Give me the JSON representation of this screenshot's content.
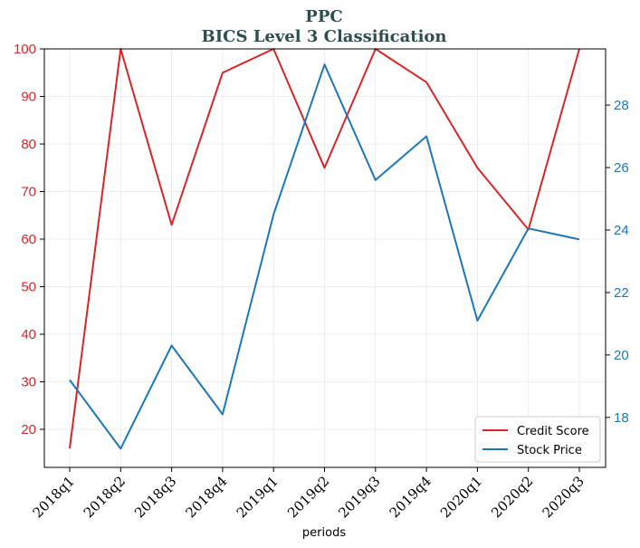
{
  "chart_data": {
    "type": "line",
    "title": "PPC",
    "subtitle": "BICS Level 3 Classification",
    "xlabel": "periods",
    "categories": [
      "2018q1",
      "2018q2",
      "2018q3",
      "2018q4",
      "2019q1",
      "2019q2",
      "2019q3",
      "2019q4",
      "2020q1",
      "2020q2",
      "2020q3"
    ],
    "series": [
      {
        "name": "Credit Score",
        "axis": "left",
        "color": "#d62728",
        "values": [
          16,
          100,
          63,
          95,
          100,
          75,
          100,
          93,
          75,
          62,
          100
        ]
      },
      {
        "name": "Stock Price",
        "axis": "right",
        "color": "#1f77b4",
        "values": [
          19.2,
          17.0,
          20.3,
          18.1,
          24.5,
          29.3,
          25.6,
          27.0,
          21.1,
          24.05,
          23.7
        ]
      }
    ],
    "y_left": {
      "ylim": [
        12,
        100
      ],
      "ticks": [
        "20",
        "30",
        "40",
        "50",
        "60",
        "70",
        "80",
        "90",
        "100"
      ],
      "color": "#d62728"
    },
    "y_right": {
      "ylim": [
        16.4,
        29.8
      ],
      "ticks": [
        "18",
        "20",
        "22",
        "24",
        "26",
        "28"
      ],
      "color": "#1f77b4"
    },
    "grid": true,
    "legend": {
      "placement": "lower-right",
      "entries": [
        "Credit Score",
        "Stock Price"
      ]
    }
  }
}
